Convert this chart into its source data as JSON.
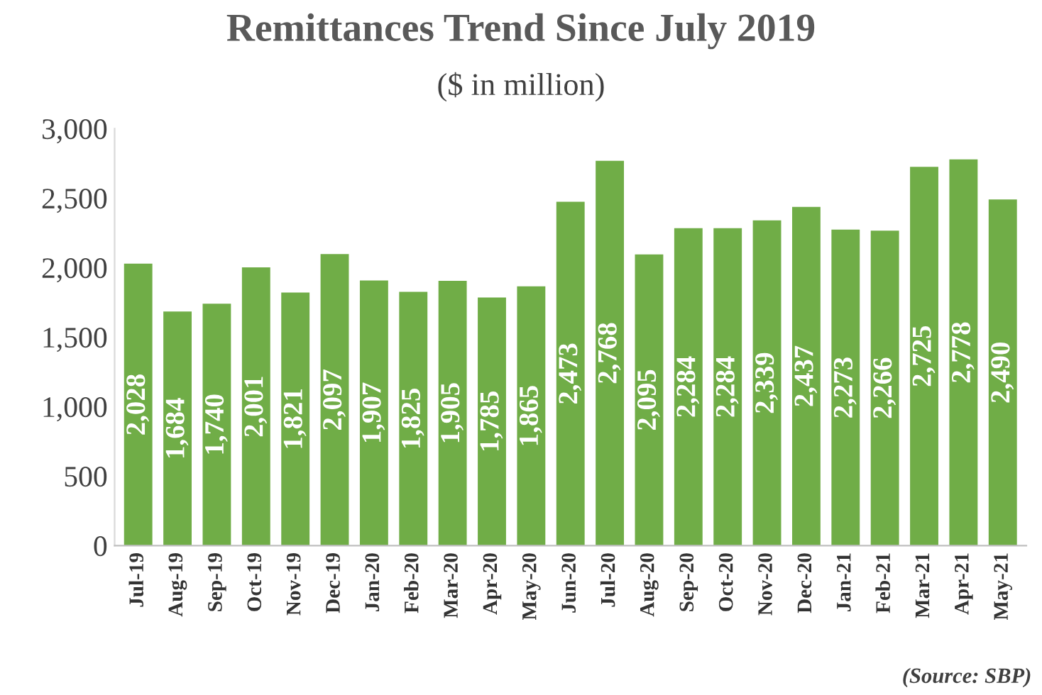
{
  "chart_data": {
    "type": "bar",
    "title": "Remittances Trend Since July 2019",
    "subtitle": "($ in million)",
    "categories": [
      "Jul-19",
      "Aug-19",
      "Sep-19",
      "Oct-19",
      "Nov-19",
      "Dec-19",
      "Jan-20",
      "Feb-20",
      "Mar-20",
      "Apr-20",
      "May-20",
      "Jun-20",
      "Jul-20",
      "Aug-20",
      "Sep-20",
      "Oct-20",
      "Nov-20",
      "Dec-20",
      "Jan-21",
      "Feb-21",
      "Mar-21",
      "Apr-21",
      "May-21"
    ],
    "values": [
      2028,
      1684,
      1740,
      2001,
      1821,
      2097,
      1907,
      1825,
      1905,
      1785,
      1865,
      2473,
      2768,
      2095,
      2284,
      2284,
      2339,
      2437,
      2273,
      2266,
      2725,
      2778,
      2490
    ],
    "color": "#70ad47",
    "ylim": [
      0,
      3000
    ],
    "yticks": [
      0,
      500,
      {
        "value": 1000,
        "label": "1,000"
      },
      {
        "value": 1500,
        "label": "1,500"
      },
      {
        "value": 2000,
        "label": "2,000"
      },
      {
        "value": 2500,
        "label": "2,500"
      },
      {
        "value": 3000,
        "label": "3,000"
      }
    ],
    "value_labels": [
      "2,028",
      "1,684",
      "1,740",
      "2,001",
      "1,821",
      "2,097",
      "1,907",
      "1,825",
      "1,905",
      "1,785",
      "1,865",
      "2,473",
      "2,768",
      "2,095",
      "2,284",
      "2,284",
      "2,339",
      "2,437",
      "2,273",
      "2,266",
      "2,725",
      "2,778",
      "2,490"
    ],
    "grid": false,
    "legend": false,
    "annotations": [
      "(Source: SBP)"
    ]
  }
}
